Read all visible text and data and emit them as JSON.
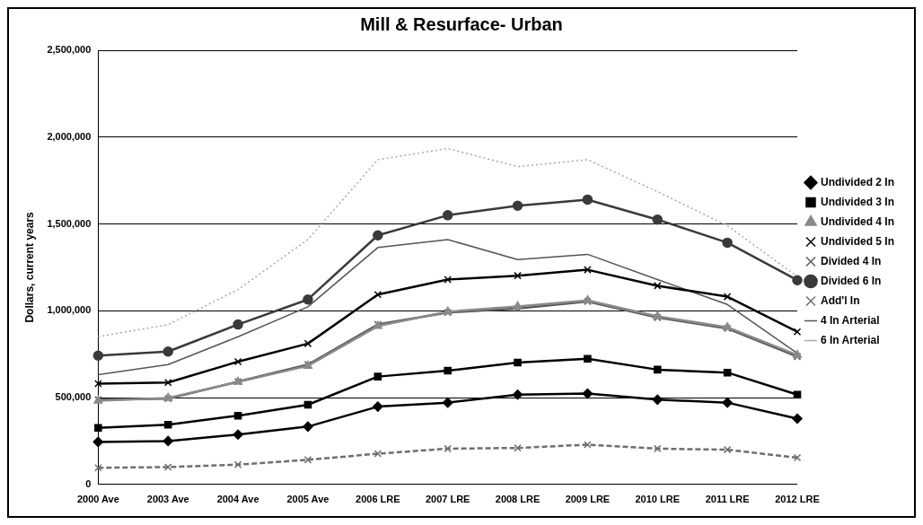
{
  "chart_data": {
    "type": "line",
    "title": "Mill & Resurface- Urban",
    "ylabel": "Dollars, current years",
    "categories": [
      "2000 Ave",
      "2003 Ave",
      "2004 Ave",
      "2005 Ave",
      "2006 LRE",
      "2007 LRE",
      "2008 LRE",
      "2009 LRE",
      "2010 LRE",
      "2011 LRE",
      "2012 LRE"
    ],
    "ylim": [
      0,
      2500000
    ],
    "yticks": [
      0,
      {
        "value": 500000,
        "label": "500,000"
      },
      {
        "value": 1000000,
        "label": "1,000,000"
      },
      {
        "value": 1500000,
        "label": "1,500,000"
      },
      {
        "value": 2000000,
        "label": "2,000,000"
      },
      {
        "value": 2500000,
        "label": "2,500,000"
      }
    ],
    "grid": "y",
    "legend": "right",
    "series": [
      {
        "name": "Undivided 2 In",
        "color": "#000000",
        "marker": "diamond",
        "values": [
          245000,
          250000,
          287000,
          333000,
          448000,
          471000,
          517000,
          523000,
          488000,
          471000,
          379000
        ]
      },
      {
        "name": "Undivided 3 In",
        "color": "#000000",
        "marker": "square",
        "values": [
          326000,
          344000,
          396000,
          459000,
          621000,
          655000,
          702000,
          724000,
          661000,
          644000,
          517000
        ]
      },
      {
        "name": "Undivided 4 In",
        "color": "#8a8a8a",
        "marker": "triangle",
        "values": [
          482000,
          498000,
          590000,
          683000,
          912000,
          995000,
          1025000,
          1060000,
          968000,
          905000,
          745000
        ]
      },
      {
        "name": "Undivided 5 In",
        "color": "#000000",
        "marker": "cross",
        "values": [
          580000,
          587000,
          707000,
          811000,
          1093000,
          1180000,
          1202000,
          1236000,
          1144000,
          1081000,
          879000
        ]
      },
      {
        "name": "Divided 4 In",
        "color": "#5a5a5a",
        "marker": "cross",
        "values": [
          488000,
          494000,
          592000,
          690000,
          921000,
          990000,
          1013000,
          1053000,
          961000,
          898000,
          736000
        ]
      },
      {
        "name": "Divided 6 In",
        "color": "#3a3a3a",
        "marker": "circle",
        "values": [
          742000,
          765000,
          921000,
          1065000,
          1434000,
          1550000,
          1605000,
          1640000,
          1525000,
          1392000,
          1176000
        ]
      },
      {
        "name": "Add'l In",
        "color": "#6e6e6e",
        "marker": "cross",
        "line_style": "dashed",
        "values": [
          96000,
          100000,
          114000,
          142000,
          177000,
          206000,
          210000,
          229000,
          206000,
          200000,
          154000
        ]
      },
      {
        "name": "4 In Arterial",
        "color": "#555555",
        "marker": "none",
        "values": [
          632000,
          690000,
          850000,
          1023000,
          1364000,
          1410000,
          1295000,
          1325000,
          1180000,
          1036000,
          755000
        ]
      },
      {
        "name": "6 In Arterial",
        "color": "#a8a8a8",
        "marker": "none",
        "line_style": "dotted",
        "values": [
          851000,
          920000,
          1122000,
          1410000,
          1870000,
          1934000,
          1830000,
          1870000,
          1686000,
          1490000,
          1197000
        ]
      }
    ]
  }
}
